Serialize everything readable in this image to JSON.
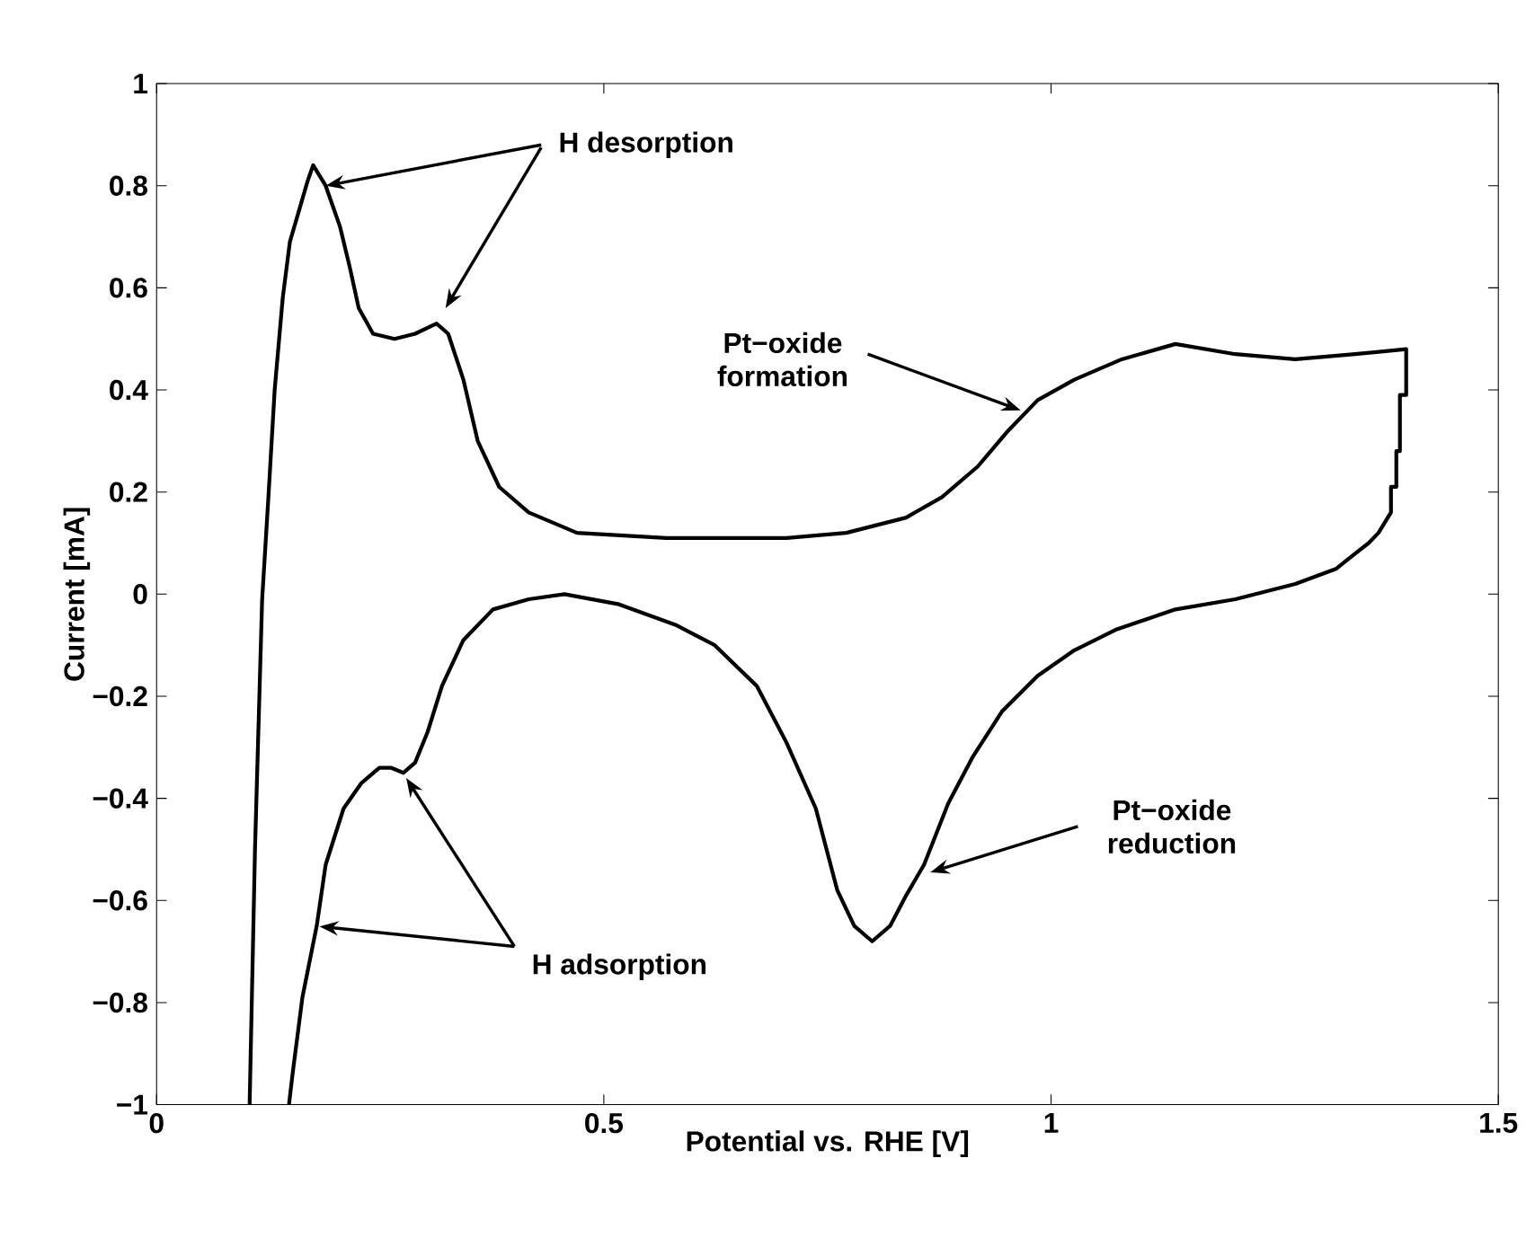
{
  "chart_data": {
    "type": "line",
    "xlabel": "Potential vs. RHE [V]",
    "ylabel": "Current [mA]",
    "xlim": [
      0,
      1.5
    ],
    "xticks": [
      0,
      0.5,
      1,
      1.5
    ],
    "ylim": [
      -1,
      1
    ],
    "yticks": [
      {
        "value": -1,
        "label": "−1"
      },
      {
        "value": -0.8,
        "label": "−0.8"
      },
      {
        "value": -0.6,
        "label": "−0.6"
      },
      {
        "value": -0.4,
        "label": "−0.4"
      },
      {
        "value": -0.2,
        "label": "−0.2"
      },
      0,
      0.2,
      0.4,
      0.6,
      0.8,
      1
    ],
    "grid": false,
    "legend": false,
    "marker": "none",
    "line_style": "solid",
    "annotations": [
      {
        "text": "H desorption",
        "x": 0.189,
        "y": 0.8
      },
      {
        "text": "Pt−oxide formation",
        "x": 0.966,
        "y": 0.36
      },
      {
        "text": "Pt−oxide reduction",
        "x": 0.865,
        "y": -0.545
      },
      {
        "text": "H adsorption",
        "x": 0.182,
        "y": -0.651
      }
    ],
    "series": [
      {
        "color": "#000000",
        "x": [
          0.104,
          0.11,
          0.118,
          0.125,
          0.132,
          0.141,
          0.149,
          0.159,
          0.169,
          0.175,
          0.189,
          0.205,
          0.216,
          0.226,
          0.242,
          0.266,
          0.289,
          0.313,
          0.326,
          0.343,
          0.359,
          0.383,
          0.416,
          0.47,
          0.57,
          0.637,
          0.704,
          0.771,
          0.838,
          0.878,
          0.918,
          0.952,
          0.985,
          1.026,
          1.079,
          1.139,
          1.206,
          1.273,
          1.34,
          1.397,
          1.397,
          1.39,
          1.39,
          1.386,
          1.386,
          1.38,
          1.38,
          1.366,
          1.355,
          1.333,
          1.319,
          1.273,
          1.206,
          1.139,
          1.072,
          1.026,
          0.985,
          0.945,
          0.912,
          0.885,
          0.858,
          0.838,
          0.82,
          0.8,
          0.78,
          0.761,
          0.737,
          0.704,
          0.671,
          0.624,
          0.58,
          0.517,
          0.456,
          0.416,
          0.376,
          0.343,
          0.319,
          0.303,
          0.289,
          0.276,
          0.262,
          0.249,
          0.229,
          0.209,
          0.189,
          0.179,
          0.163,
          0.152,
          0.148
        ],
        "values": [
          -1,
          -0.5,
          -0.01,
          0.19,
          0.4,
          0.58,
          0.69,
          0.75,
          0.81,
          0.84,
          0.8,
          0.72,
          0.64,
          0.56,
          0.51,
          0.5,
          0.51,
          0.53,
          0.51,
          0.42,
          0.3,
          0.21,
          0.16,
          0.12,
          0.11,
          0.11,
          0.11,
          0.12,
          0.15,
          0.19,
          0.25,
          0.32,
          0.38,
          0.42,
          0.46,
          0.49,
          0.47,
          0.46,
          0.47,
          0.48,
          0.39,
          0.39,
          0.28,
          0.28,
          0.21,
          0.21,
          0.16,
          0.12,
          0.1,
          0.07,
          0.05,
          0.02,
          -0.01,
          -0.03,
          -0.07,
          -0.11,
          -0.16,
          -0.23,
          -0.32,
          -0.41,
          -0.53,
          -0.59,
          -0.65,
          -0.68,
          -0.65,
          -0.58,
          -0.42,
          -0.29,
          -0.18,
          -0.1,
          -0.06,
          -0.02,
          0.0,
          -0.01,
          -0.03,
          -0.09,
          -0.18,
          -0.27,
          -0.33,
          -0.35,
          -0.34,
          -0.34,
          -0.37,
          -0.42,
          -0.53,
          -0.65,
          -0.79,
          -0.94,
          -1
        ]
      }
    ]
  }
}
